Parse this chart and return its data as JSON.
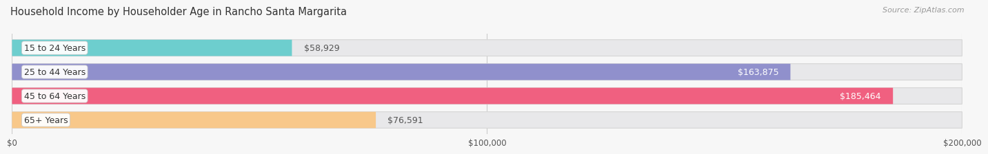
{
  "title": "Household Income by Householder Age in Rancho Santa Margarita",
  "source": "Source: ZipAtlas.com",
  "categories": [
    "15 to 24 Years",
    "25 to 44 Years",
    "45 to 64 Years",
    "65+ Years"
  ],
  "values": [
    58929,
    163875,
    185464,
    76591
  ],
  "bar_colors": [
    "#6dcece",
    "#9090cc",
    "#f06080",
    "#f8c88a"
  ],
  "label_colors": [
    "#555555",
    "#ffffff",
    "#ffffff",
    "#555555"
  ],
  "background_color": "#f7f7f7",
  "bar_bg_color": "#e8e8e8",
  "xlim": [
    0,
    200000
  ],
  "xticks": [
    0,
    100000,
    200000
  ],
  "xtick_labels": [
    "$0",
    "$100,000",
    "$200,000"
  ],
  "title_fontsize": 10.5,
  "source_fontsize": 8,
  "value_fontsize": 9,
  "category_fontsize": 9,
  "bar_height": 0.68,
  "bar_gap": 0.09
}
